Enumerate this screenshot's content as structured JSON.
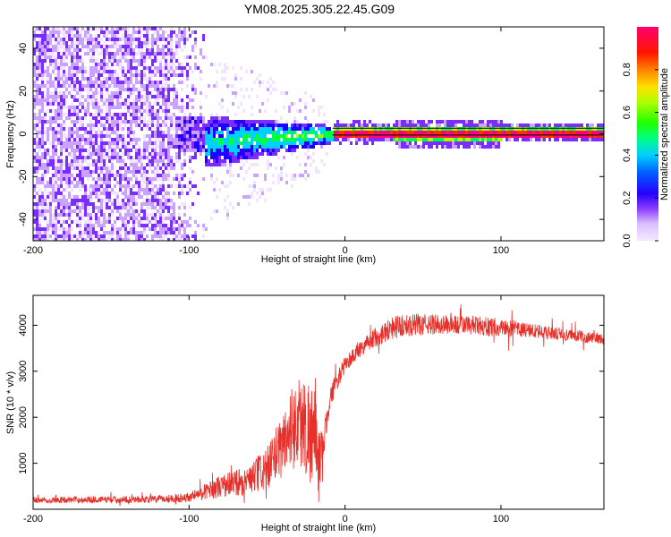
{
  "figure": {
    "title": "YM08.2025.305.22.45.G09"
  },
  "chart_data": [
    {
      "type": "heatmap",
      "title": "YM08.2025.305.22.45.G09",
      "xlabel": "Height of straight line (km)",
      "ylabel": "Frequency (Hz)",
      "xlim": [
        -200,
        166
      ],
      "ylim": [
        -50,
        50
      ],
      "xticks": [
        -200,
        -100,
        0,
        100
      ],
      "yticks": [
        -40,
        -20,
        0,
        20,
        40
      ],
      "xtick_labels": [
        "-200",
        "-100",
        "0",
        "100"
      ],
      "ytick_labels": [
        "-40",
        "-20",
        "0",
        "20",
        "40"
      ],
      "colorbar": {
        "label": "Normalized spectral amplitude",
        "range": [
          0,
          1
        ],
        "ticks": [
          0.0,
          0.2,
          0.4,
          0.6,
          0.8
        ],
        "tick_labels": [
          "0.0",
          "0.2",
          "0.4",
          "0.6",
          "0.8"
        ],
        "colormap": [
          "#f0e6ff",
          "#c9a3ff",
          "#7b2cff",
          "#2200ff",
          "#00d0ff",
          "#00ff40",
          "#b0ff00",
          "#ffd000",
          "#ff3000",
          "#ff0080"
        ]
      },
      "features": {
        "noise_region_x": [
          -200,
          -90
        ],
        "decay_region_x": [
          -90,
          -8
        ],
        "carrier_track_x": [
          -8,
          166
        ],
        "carrier_frequency_hz": 1,
        "spread_hz_at_noise": 50,
        "spread_hz_at_transition": 6
      }
    },
    {
      "type": "line",
      "title": "",
      "xlabel": "Height of straight line (km)",
      "ylabel": "SNR (10 * v/v)",
      "xlim": [
        -200,
        166
      ],
      "ylim": [
        0,
        4650
      ],
      "xticks": [
        -200,
        -100,
        0,
        100
      ],
      "yticks": [
        1000,
        2000,
        3000,
        4000
      ],
      "xtick_labels": [
        "-200",
        "-100",
        "0",
        "100"
      ],
      "ytick_labels": [
        "1000",
        "2000",
        "3000",
        "4000"
      ],
      "series": [
        {
          "name": "SNR",
          "color": "#e8302a",
          "envelope": {
            "x": [
              -200,
              -160,
              -120,
              -100,
              -90,
              -80,
              -60,
              -50,
              -40,
              -35,
              -30,
              -25,
              -20,
              -17,
              -14,
              -10,
              -5,
              0,
              10,
              20,
              30,
              40,
              60,
              80,
              100,
              120,
              140,
              166
            ],
            "mean": [
              200,
              210,
              220,
              260,
              380,
              500,
              650,
              900,
              1400,
              1750,
              1900,
              1800,
              1600,
              950,
              1300,
              2400,
              2800,
              3150,
              3500,
              3750,
              3950,
              4000,
              4020,
              4000,
              3950,
              3880,
              3800,
              3700
            ],
            "amp": [
              70,
              70,
              80,
              110,
              170,
              250,
              350,
              500,
              700,
              900,
              1000,
              1100,
              1200,
              900,
              400,
              250,
              200,
              180,
              180,
              220,
              260,
              240,
              220,
              210,
              200,
              160,
              130,
              120
            ]
          }
        }
      ]
    }
  ]
}
